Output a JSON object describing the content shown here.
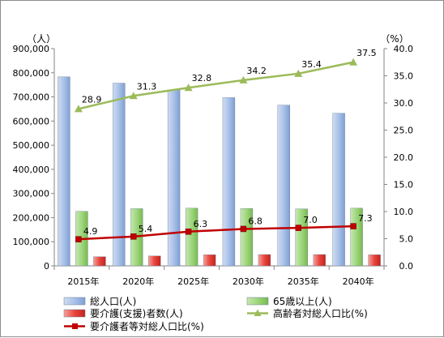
{
  "chart_data": {
    "type": "bar",
    "categories": [
      "2015年",
      "2020年",
      "2025年",
      "2030年",
      "2035年",
      "2040年"
    ],
    "left_axis": {
      "unit": "（人）",
      "range": [
        0,
        900000
      ],
      "ticks": [
        "0",
        "100,000",
        "200,000",
        "300,000",
        "400,000",
        "500,000",
        "600,000",
        "700,000",
        "800,000",
        "900,000"
      ]
    },
    "right_axis": {
      "unit": "（%）",
      "range": [
        0,
        40
      ],
      "ticks": [
        "0.0",
        "5.0",
        "10.0",
        "15.0",
        "20.0",
        "25.0",
        "30.0",
        "35.0",
        "40.0"
      ]
    },
    "series": [
      {
        "name": "総人口(人)",
        "kind": "bar",
        "axis": "left",
        "color": "#9db7e0",
        "values": [
          783000,
          757000,
          729000,
          697000,
          666000,
          632000
        ]
      },
      {
        "name": "65歳以上(人)",
        "kind": "bar",
        "axis": "left",
        "color": "#92cf6e",
        "values": [
          226000,
          237000,
          239000,
          238000,
          236000,
          239000
        ]
      },
      {
        "name": "要介護(支援)者数(人)",
        "kind": "bar",
        "axis": "left",
        "color": "#e8453c",
        "values": [
          38000,
          41000,
          46000,
          47000,
          47000,
          46000
        ]
      },
      {
        "name": "高齢者対総人口比(%)",
        "kind": "line",
        "axis": "right",
        "color": "#9bbb59",
        "marker": "triangle",
        "values": [
          28.9,
          31.3,
          32.8,
          34.2,
          35.4,
          37.5
        ],
        "labels": [
          "28.9",
          "31.3",
          "32.8",
          "34.2",
          "35.4",
          "37.5"
        ]
      },
      {
        "name": "要介護者等対総人口比(%)",
        "kind": "line",
        "axis": "right",
        "color": "#c00000",
        "marker": "square",
        "values": [
          4.9,
          5.4,
          6.3,
          6.8,
          7.0,
          7.3
        ],
        "labels": [
          "4.9",
          "5.4",
          "6.3",
          "6.8",
          "7.0",
          "7.3"
        ]
      }
    ],
    "legend": {
      "placement": "bottom",
      "entries": [
        "総人口(人)",
        "65歳以上(人)",
        "要介護(支援)者数(人)",
        "高齢者対総人口比(%)",
        "要介護者等対総人口比(%)"
      ]
    },
    "grid": false
  }
}
